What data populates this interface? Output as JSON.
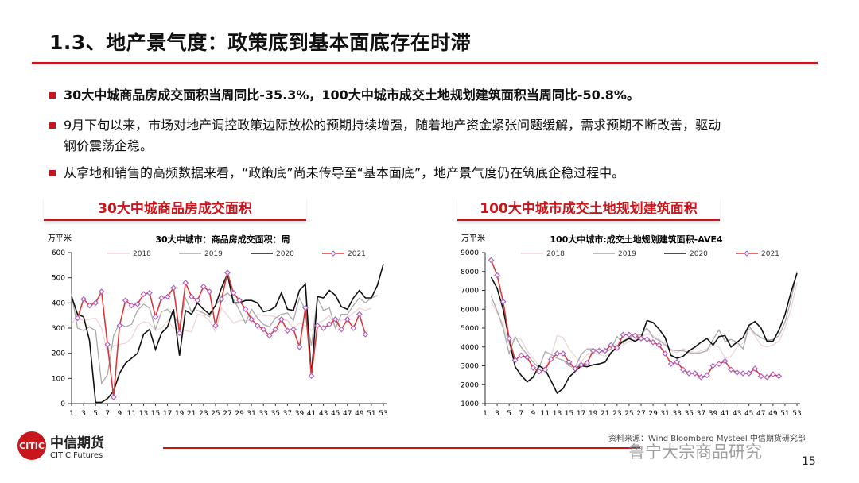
{
  "header": {
    "title": "1.3、地产景气度：政策底到基本面底存在时滞"
  },
  "bullets": [
    {
      "text": "30大中城商品房成交面积当周同比-35.3%，100大中城市成交土地规划建筑面积当周同比-50.8%。",
      "bold": true
    },
    {
      "text": "9月下旬以来，市场对地产调控政策边际放松的预期持续增强，随着地产资金紧张问题缓解，需求预期不断改善，驱动",
      "text2": "钢价震荡企稳。"
    },
    {
      "text": "从拿地和销售的高频数据来看，“政策底”尚未传导至“基本面底”，地产景气度仍在筑底企稳过程中。"
    }
  ],
  "chart_headers": [
    "30大中城商品房成交面积",
    "100大中城市成交土地规划建筑面积"
  ],
  "colors": {
    "accent": "#c8161d",
    "s2018": "#f0d4d6",
    "s2019": "#aaaaaa",
    "s2020": "#111111",
    "s2021_line": "#d9383a",
    "s2021_marker": "#b05fc0"
  },
  "chart_data": [
    {
      "type": "line",
      "title": "30大中城市：商品房成交面积：周",
      "ylabel": "万平米",
      "ylim": [
        0,
        600
      ],
      "yticks": [
        0,
        100,
        200,
        300,
        400,
        500,
        600
      ],
      "xlim": [
        1,
        53
      ],
      "xticks": [
        1,
        3,
        5,
        7,
        9,
        11,
        13,
        15,
        17,
        19,
        21,
        23,
        25,
        27,
        29,
        31,
        33,
        35,
        37,
        39,
        41,
        43,
        45,
        47,
        49,
        51,
        53
      ],
      "legend": "top",
      "series": [
        {
          "name": "2018",
          "start": 1,
          "values": [
            320,
            340,
            330,
            335,
            340,
            300,
            200,
            230,
            235,
            240,
            260,
            310,
            325,
            320,
            290,
            300,
            330,
            300,
            295,
            290,
            285,
            355,
            350,
            330,
            285,
            380,
            350,
            320,
            330,
            330,
            330,
            355,
            350,
            350,
            345,
            335,
            330,
            300,
            320,
            310,
            290,
            320,
            330,
            350,
            300,
            330,
            340,
            360,
            380,
            370,
            380
          ]
        },
        {
          "name": "2019",
          "start": 1,
          "values": [
            435,
            300,
            290,
            305,
            290,
            80,
            115,
            270,
            320,
            305,
            315,
            370,
            395,
            380,
            295,
            365,
            375,
            350,
            310,
            420,
            365,
            370,
            360,
            345,
            390,
            420,
            440,
            415,
            370,
            320,
            375,
            340,
            315,
            305,
            340,
            355,
            360,
            330,
            420,
            370,
            230,
            420,
            370,
            380,
            300,
            355,
            355,
            390,
            420,
            400,
            420,
            430
          ]
        },
        {
          "name": "2020",
          "start": 1,
          "values": [
            425,
            355,
            345,
            250,
            5,
            5,
            20,
            50,
            120,
            160,
            180,
            200,
            275,
            295,
            215,
            280,
            305,
            375,
            190,
            370,
            355,
            400,
            375,
            355,
            390,
            460,
            515,
            400,
            400,
            410,
            410,
            400,
            365,
            370,
            385,
            440,
            375,
            370,
            450,
            475,
            110,
            425,
            420,
            450,
            430,
            385,
            375,
            420,
            450,
            420,
            420,
            470,
            555
          ]
        },
        {
          "name": "2021",
          "start": 2,
          "values": [
            340,
            415,
            390,
            400,
            445,
            235,
            25,
            310,
            410,
            390,
            395,
            435,
            440,
            345,
            420,
            425,
            460,
            280,
            480,
            425,
            410,
            465,
            445,
            310,
            415,
            520,
            440,
            410,
            375,
            335,
            310,
            295,
            270,
            295,
            335,
            290,
            295,
            225,
            380,
            110,
            310,
            300,
            315,
            335,
            295,
            335,
            300,
            355,
            275
          ]
        }
      ]
    },
    {
      "type": "line",
      "title": "100大中城市:成交土地规划建筑面积-AVE4",
      "ylabel": "万平米",
      "ylim": [
        1000,
        9000
      ],
      "yticks": [
        1000,
        2000,
        3000,
        4000,
        5000,
        6000,
        7000,
        8000,
        9000
      ],
      "xlim": [
        1,
        53
      ],
      "xticks": [
        1,
        3,
        5,
        7,
        9,
        11,
        13,
        15,
        17,
        19,
        21,
        23,
        25,
        27,
        29,
        31,
        33,
        35,
        37,
        39,
        41,
        43,
        45,
        47,
        49,
        51,
        53
      ],
      "legend": "top",
      "series": [
        {
          "name": "2018",
          "start": 2,
          "values": [
            6400,
            5800,
            5200,
            4100,
            4500,
            4400,
            3800,
            3400,
            3000,
            2900,
            3500,
            4600,
            4500,
            3900,
            3500,
            3200,
            3600,
            3700,
            3600,
            3500,
            3700,
            3900,
            4100,
            4300,
            4400,
            4500,
            4700,
            4600,
            4400,
            4200,
            3800,
            3700,
            3900,
            3800,
            3700,
            3800,
            3900,
            4100,
            4000,
            3400,
            3500,
            4000,
            4200,
            5000,
            4600,
            4100,
            4000,
            4100,
            4300,
            5000,
            6000,
            7400
          ]
        },
        {
          "name": "2019",
          "start": 2,
          "values": [
            6700,
            5900,
            5000,
            3650,
            4550,
            4000,
            3600,
            3200,
            2900,
            3750,
            3600,
            3400,
            3300,
            3000,
            2900,
            3600,
            3900,
            3900,
            3800,
            3700,
            3900,
            4550,
            4200,
            4500,
            4600,
            4650,
            5000,
            4500,
            4350,
            4100,
            3850,
            3800,
            3800,
            3700,
            3650,
            3700,
            3800,
            4400,
            4900,
            4300,
            4400,
            4250,
            3900,
            5100,
            4700,
            4500,
            4350,
            4400,
            4600,
            5300,
            6500,
            8000
          ]
        },
        {
          "name": "2020",
          "start": 2,
          "values": [
            7700,
            7100,
            6000,
            4400,
            2950,
            2500,
            2150,
            2400,
            3000,
            2800,
            2200,
            1550,
            1800,
            2400,
            2700,
            3000,
            2950,
            3050,
            3100,
            3200,
            3700,
            4000,
            4300,
            4450,
            4300,
            4500,
            5400,
            5300,
            4950,
            4500,
            3550,
            3400,
            3500,
            3800,
            4000,
            4250,
            4450,
            4100,
            4550,
            4600,
            4000,
            4250,
            4500,
            5150,
            5350,
            5000,
            4300,
            4300,
            4900,
            5700,
            6900,
            7900
          ]
        },
        {
          "name": "2021",
          "start": 2,
          "values": [
            8600,
            7800,
            6400,
            4450,
            3300,
            3550,
            3450,
            2900,
            2700,
            2800,
            3350,
            3650,
            3650,
            3200,
            2850,
            3050,
            3150,
            3800,
            3800,
            3800,
            4100,
            3950,
            4650,
            4650,
            4600,
            4450,
            4400,
            4250,
            4100,
            3650,
            3100,
            3200,
            2800,
            2600,
            2600,
            2400,
            2500,
            3000,
            3100,
            3250,
            2800,
            2650,
            2600,
            2600,
            2850,
            2450,
            2400,
            2550,
            2450
          ]
        }
      ]
    }
  ],
  "footer": {
    "logo_cn": "中信期货",
    "logo_en": "CITIC Futures",
    "logo_mark": "CITIC",
    "source": "资料来源：Wind Bloomberg Mysteel 中信期货研究部",
    "watermark": "鲁宁大宗商品研究",
    "page": "15"
  }
}
